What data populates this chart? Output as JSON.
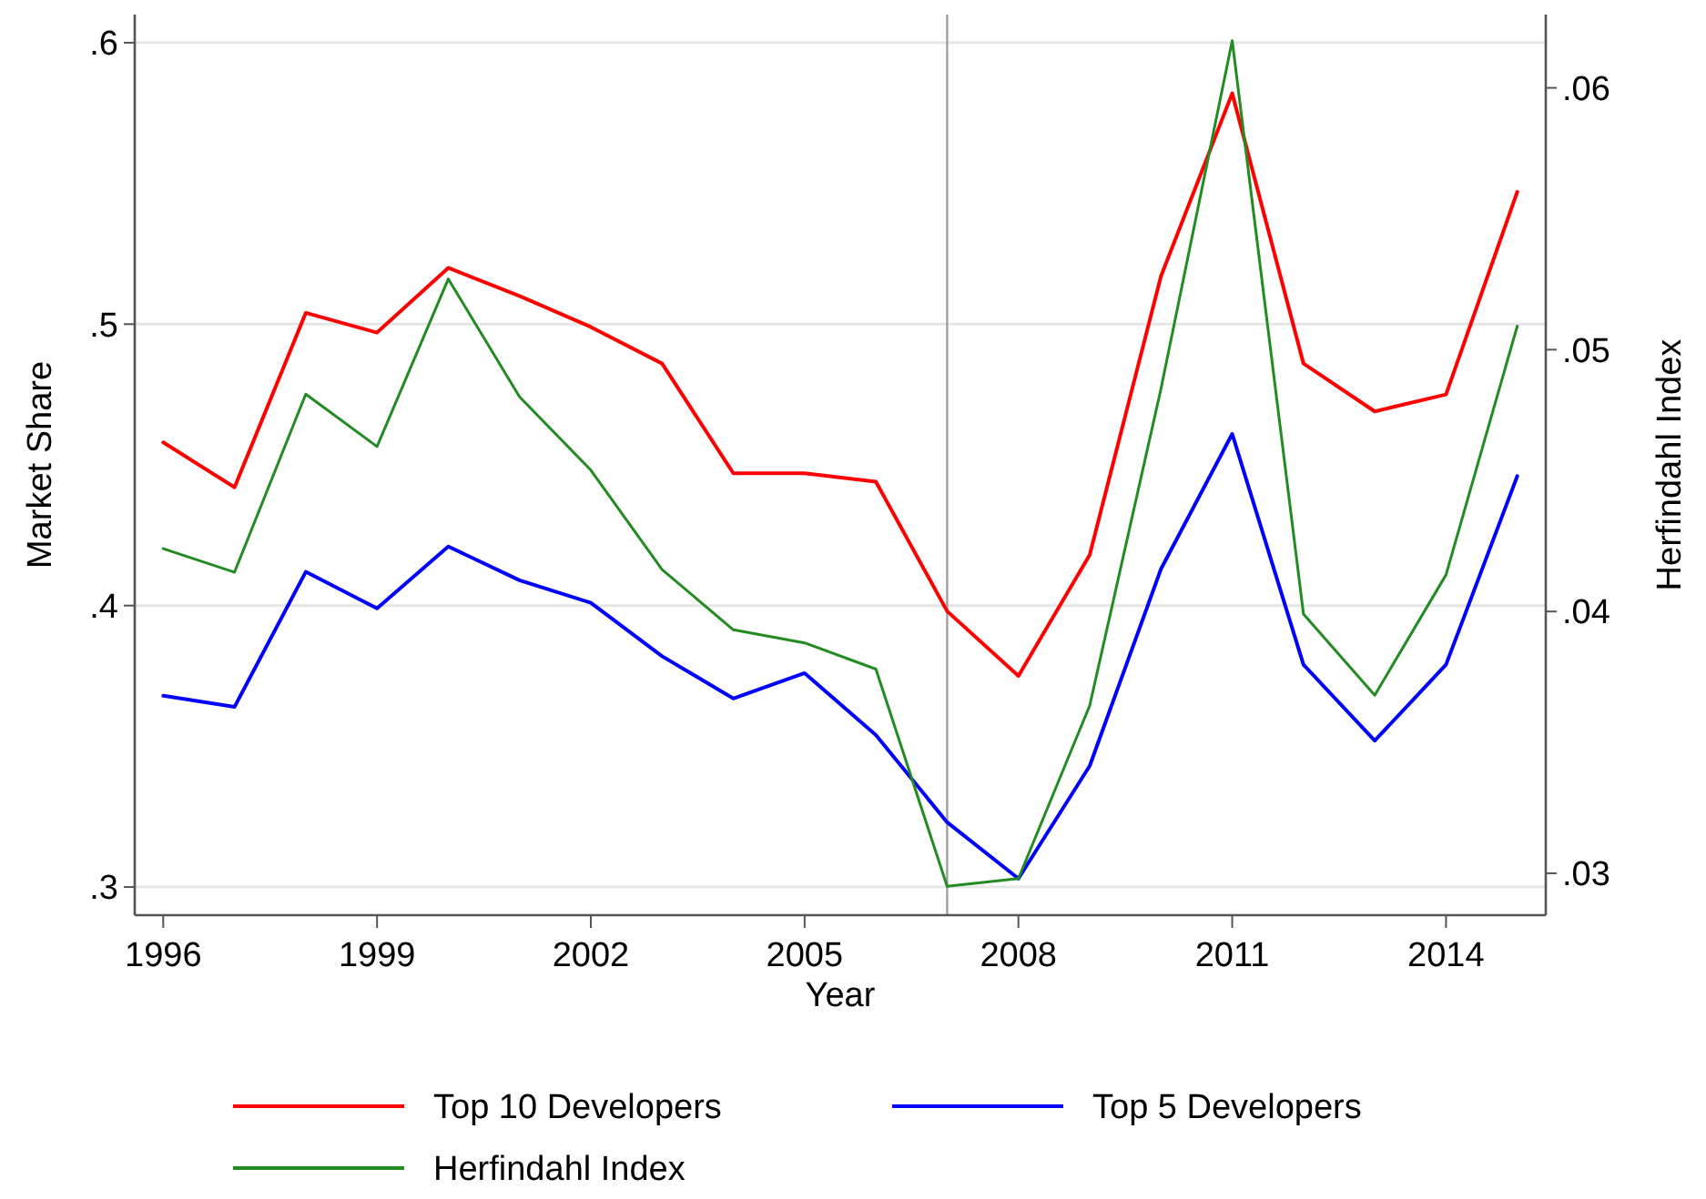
{
  "chart_data": {
    "type": "line",
    "xlabel": "Year",
    "ylabel": "Market Share",
    "y2label": "Herfindahl Index",
    "x": [
      1996,
      1997,
      1998,
      1999,
      2000,
      2001,
      2002,
      2003,
      2004,
      2005,
      2006,
      2007,
      2008,
      2009,
      2010,
      2011,
      2012,
      2013,
      2014,
      2015
    ],
    "xlim": [
      1995.6,
      2015.4
    ],
    "xticks": [
      1996,
      1999,
      2002,
      2005,
      2008,
      2011,
      2014
    ],
    "ylim": [
      0.29,
      0.61
    ],
    "yticks": [
      {
        "value": 0.3,
        "label": ".3"
      },
      {
        "value": 0.4,
        "label": ".4"
      },
      {
        "value": 0.5,
        "label": ".5"
      },
      {
        "value": 0.6,
        "label": ".6"
      }
    ],
    "y2lim": [
      0.0284,
      0.0628
    ],
    "y2ticks": [
      {
        "value": 0.03,
        "label": ".03"
      },
      {
        "value": 0.04,
        "label": ".04"
      },
      {
        "value": 0.05,
        "label": ".05"
      },
      {
        "value": 0.06,
        "label": ".06"
      }
    ],
    "grid": "y",
    "legend": "bottom",
    "line_style": "solid",
    "ref_lines": [
      {
        "axis": "x",
        "value": 2007,
        "color": "#a0a0a0"
      }
    ],
    "series": [
      {
        "name": "Top 10 Developers",
        "color": "#ff0000",
        "values": [
          0.458,
          0.442,
          0.504,
          0.497,
          0.52,
          0.51,
          0.499,
          0.486,
          0.447,
          0.447,
          0.444,
          0.398,
          0.375,
          0.418,
          0.517,
          0.582,
          0.486,
          0.469,
          0.475,
          0.547
        ]
      },
      {
        "name": "Top 5 Developers",
        "color": "#0000ff",
        "values": [
          0.368,
          0.364,
          0.412,
          0.399,
          0.421,
          0.409,
          0.401,
          0.382,
          0.367,
          0.376,
          0.354,
          0.323,
          0.303,
          0.343,
          0.413,
          0.461,
          0.379,
          0.352,
          0.379,
          0.446
        ]
      },
      {
        "name": "Herfindahl Index",
        "color": "#228b22",
        "axis": "y2",
        "values": [
          0.0424,
          0.0415,
          0.0483,
          0.0463,
          0.0527,
          0.0482,
          0.0454,
          0.0416,
          0.0393,
          0.0388,
          0.0378,
          0.0295,
          0.0298,
          0.0364,
          0.0485,
          0.0618,
          0.0399,
          0.0368,
          0.0414,
          0.0509
        ]
      }
    ]
  }
}
